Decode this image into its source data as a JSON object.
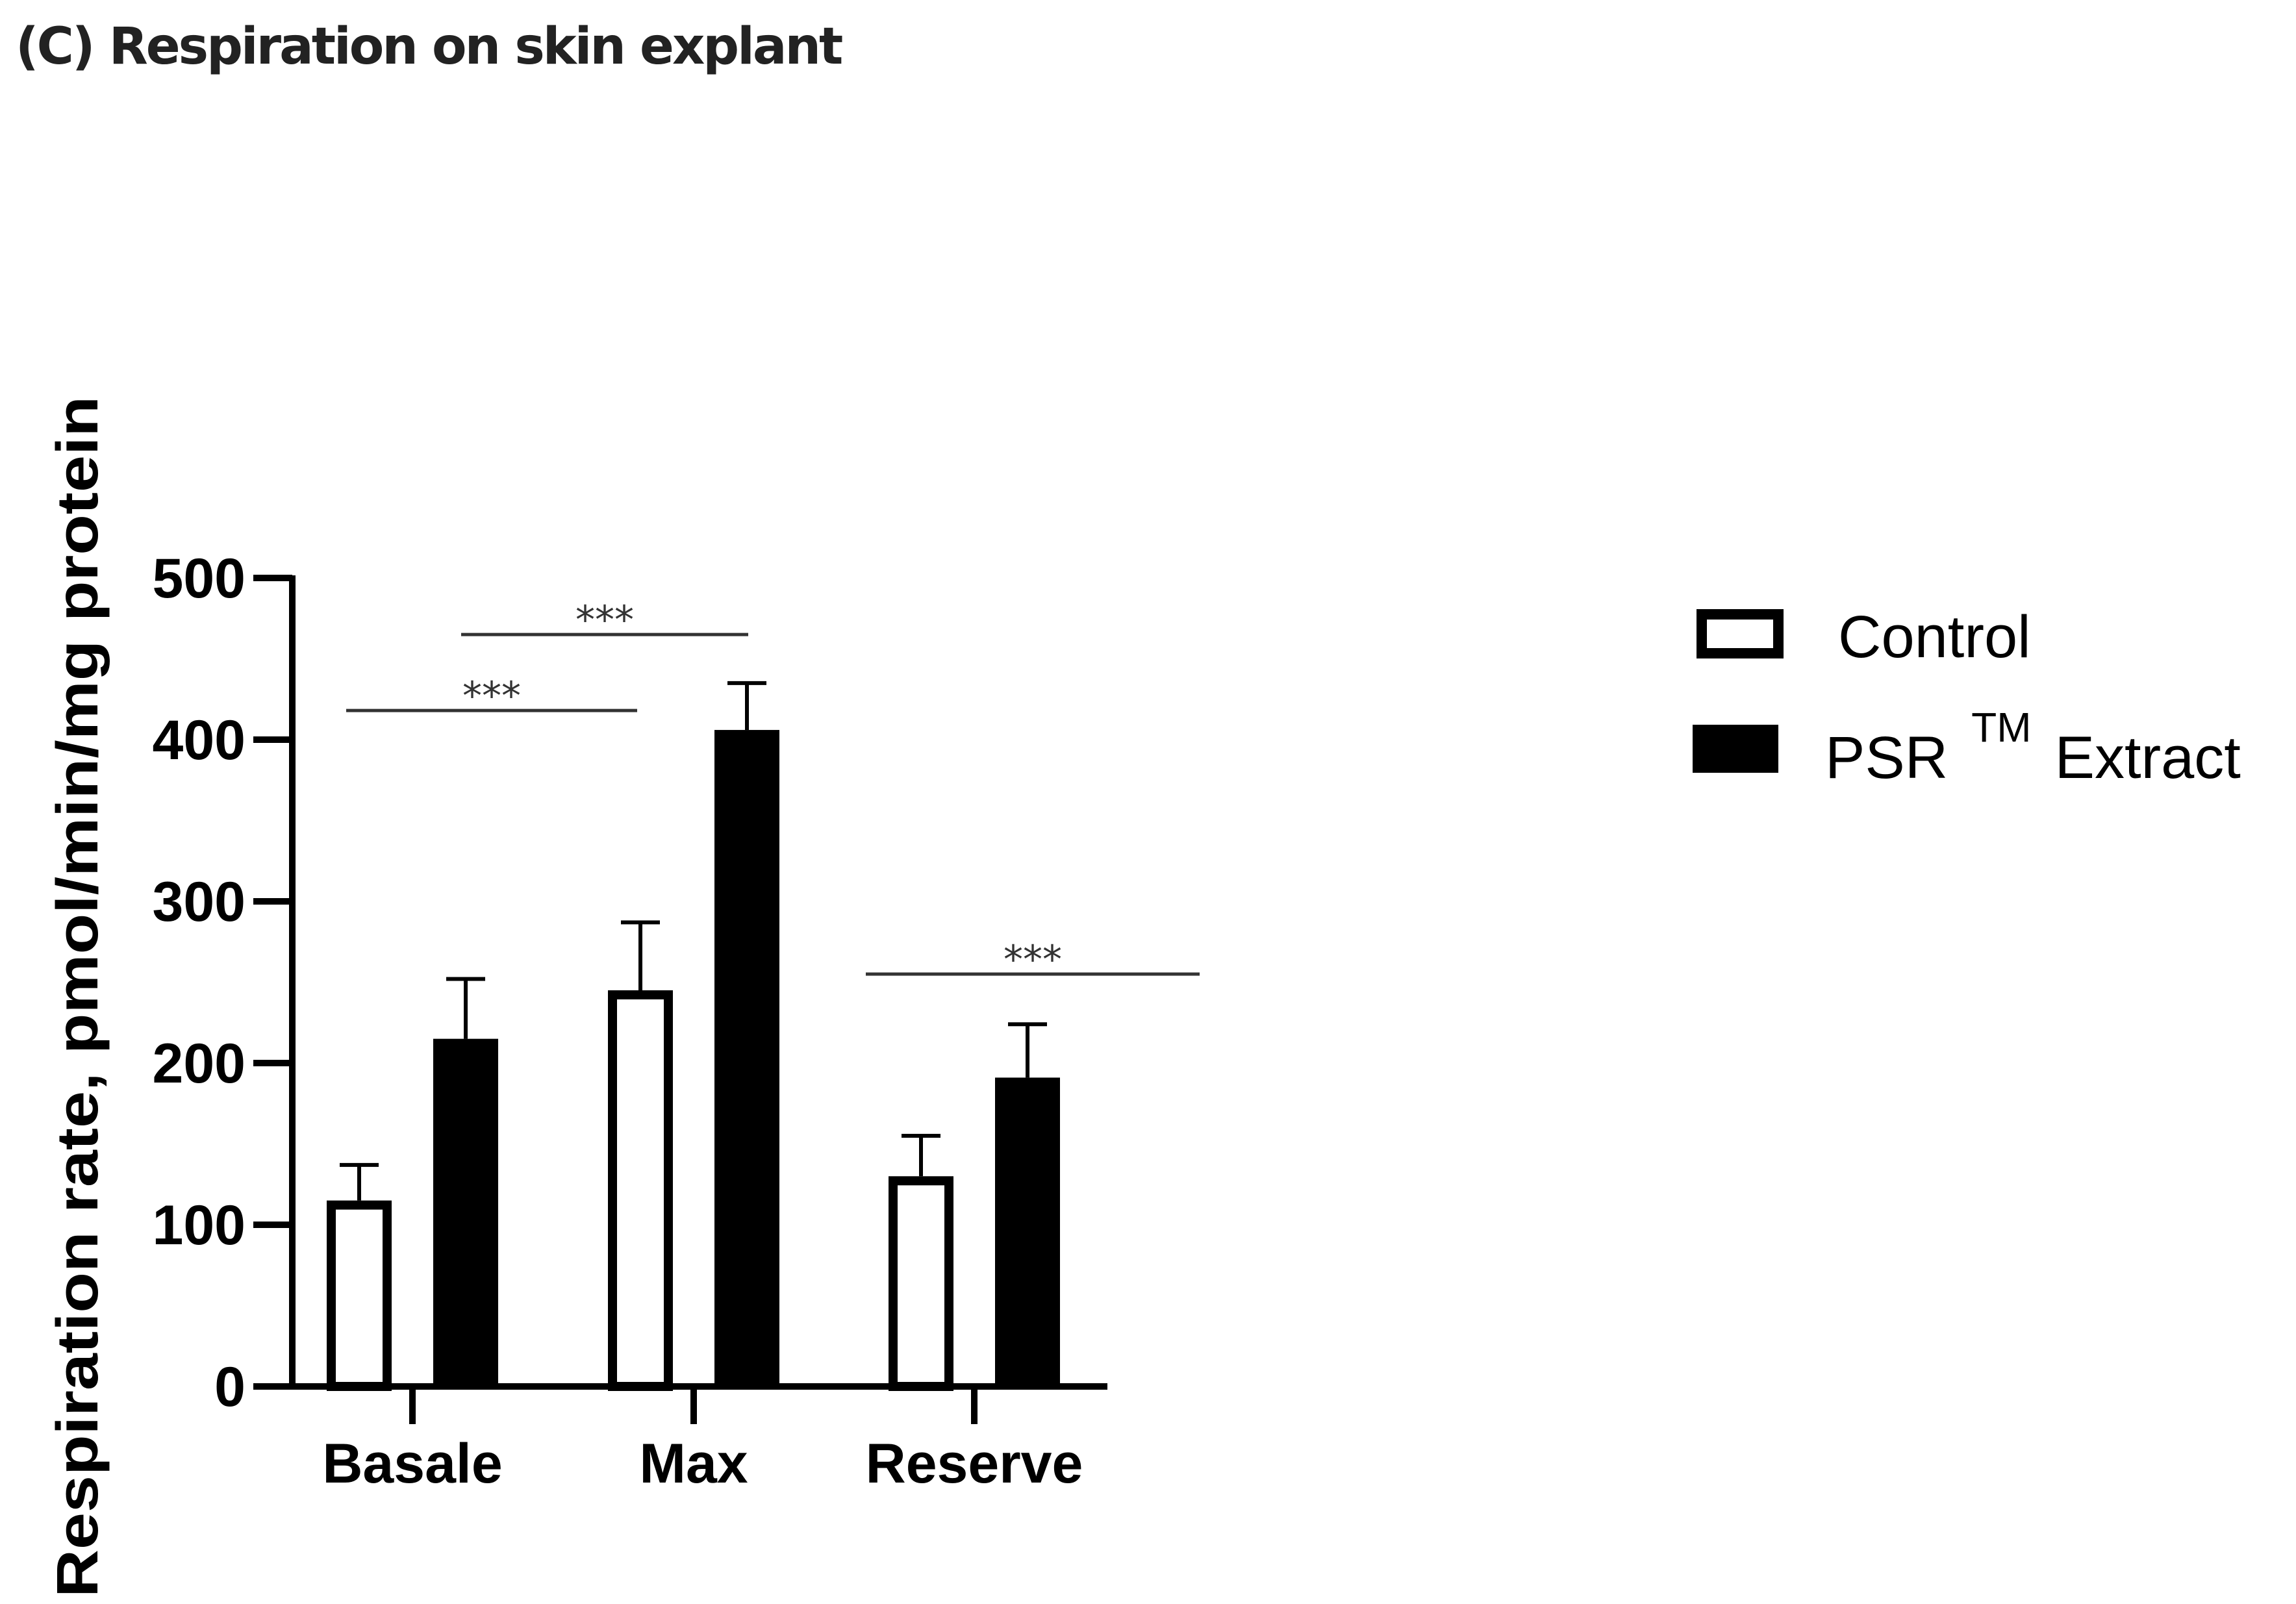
{
  "chart_data": {
    "type": "bar",
    "title": "(C) Respiration on skin explant",
    "ylabel": "Respiration rate, pmol/min/mg protein",
    "xlabel": "",
    "ylim": [
      0,
      500
    ],
    "yticks": [
      0,
      100,
      200,
      300,
      400,
      500
    ],
    "categories": [
      "Basale",
      "Max",
      "Reserve"
    ],
    "series": [
      {
        "name": "Control",
        "fill": "#ffffff",
        "values": [
          115,
          245,
          130
        ],
        "errors": [
          22,
          42,
          25
        ]
      },
      {
        "name": "PSR",
        "superscript": "TM",
        "suffix": "Extract",
        "fill": "#000000",
        "values": [
          215,
          406,
          191
        ],
        "errors": [
          37,
          29,
          33
        ]
      }
    ],
    "significance": [
      {
        "label": "***",
        "from": {
          "category": 0,
          "series": 0
        },
        "to": {
          "category": 1,
          "series": 0
        },
        "y": 418
      },
      {
        "label": "***",
        "from": {
          "category": 0,
          "series": 1
        },
        "to": {
          "category": 1,
          "series": 1
        },
        "y": 465
      },
      {
        "label": "***",
        "from": {
          "category": 2,
          "series": 0
        },
        "to": {
          "category": 2,
          "series": 1
        },
        "y": 255
      }
    ],
    "legend_position": "right"
  },
  "colors": {
    "axis": "#000000",
    "sig_line": "#333333"
  }
}
